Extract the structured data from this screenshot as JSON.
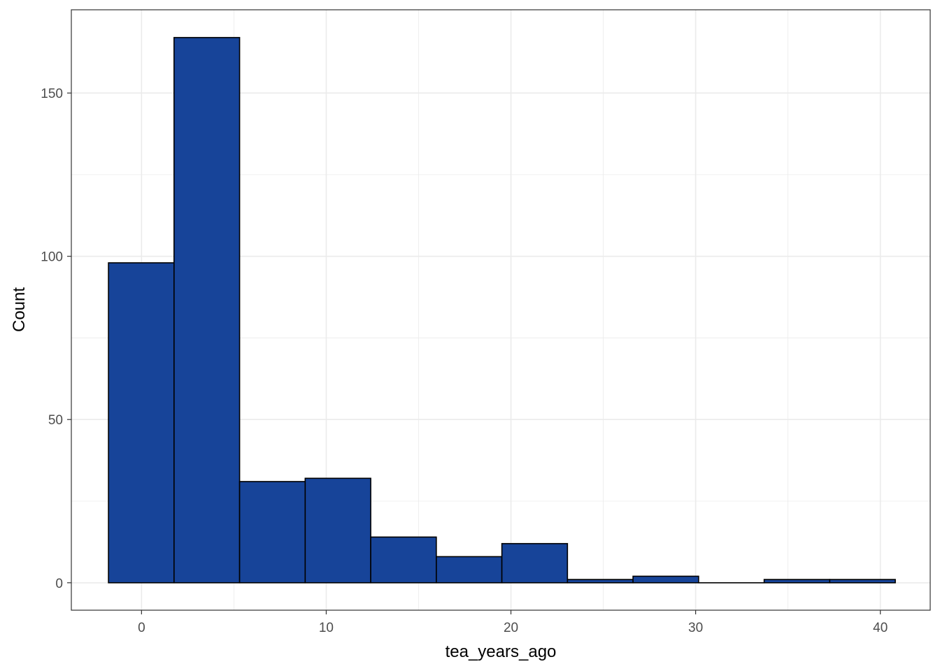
{
  "chart_data": {
    "type": "bar",
    "subtype": "histogram",
    "title": "",
    "xlabel": "tea_years_ago",
    "ylabel": "Count",
    "xlim": [
      -3.8,
      42.7
    ],
    "ylim": [
      -8.4,
      175.5
    ],
    "x_ticks": [
      0,
      10,
      20,
      30,
      40
    ],
    "y_ticks": [
      0,
      50,
      100,
      150
    ],
    "x_tick_labels": [
      "0",
      "10",
      "20",
      "30",
      "40"
    ],
    "y_tick_labels": [
      "0",
      "50",
      "100",
      "150"
    ],
    "x_minor_ticks": [
      5,
      15,
      25,
      35
    ],
    "y_minor_ticks": [
      25,
      75,
      125
    ],
    "grid": true,
    "legend": "none",
    "colors": {
      "bar_fill": "#174499",
      "bar_stroke": "#000000",
      "grid": "#ebebeb",
      "panel_border": "#333333",
      "tick_text": "#4d4d4d"
    },
    "bins": [
      {
        "x0": -1.79,
        "x1": 1.76,
        "count": 98
      },
      {
        "x0": 1.76,
        "x1": 5.31,
        "count": 167
      },
      {
        "x0": 5.31,
        "x1": 8.86,
        "count": 31
      },
      {
        "x0": 8.86,
        "x1": 12.41,
        "count": 32
      },
      {
        "x0": 12.41,
        "x1": 15.96,
        "count": 14
      },
      {
        "x0": 15.96,
        "x1": 19.51,
        "count": 8
      },
      {
        "x0": 19.51,
        "x1": 23.06,
        "count": 12
      },
      {
        "x0": 23.06,
        "x1": 26.61,
        "count": 1
      },
      {
        "x0": 26.61,
        "x1": 30.16,
        "count": 2
      },
      {
        "x0": 30.16,
        "x1": 33.71,
        "count": 0
      },
      {
        "x0": 33.71,
        "x1": 37.26,
        "count": 1
      },
      {
        "x0": 37.26,
        "x1": 40.81,
        "count": 1
      }
    ]
  }
}
